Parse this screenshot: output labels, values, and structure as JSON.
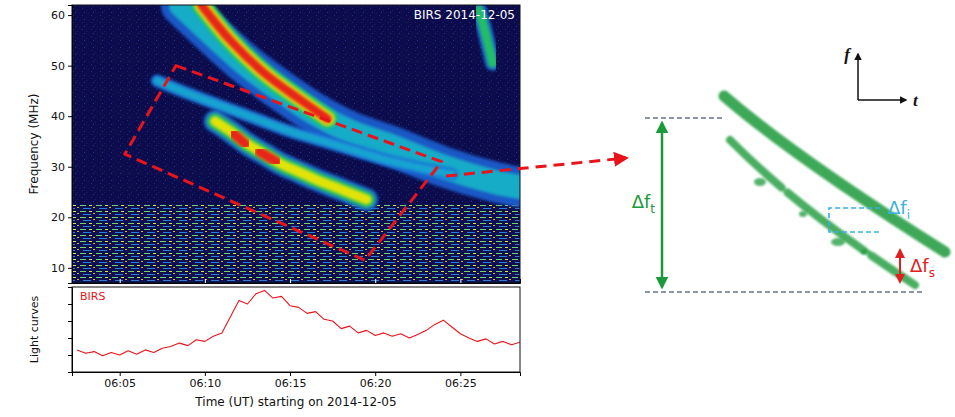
{
  "chart_data": [
    {
      "type": "spectrogram",
      "title": "BIRS 2014-12-05",
      "y_label": "Frequency (MHz)",
      "xlim": [
        2.2,
        28.5
      ],
      "xticks": [
        5,
        10,
        15,
        20,
        25
      ],
      "ylim": [
        7,
        62
      ],
      "yticks": [
        10,
        20,
        30,
        40,
        50,
        60
      ],
      "tick_labels": "y",
      "rfi_band": [
        7,
        22.5
      ],
      "highlight": {
        "t": [
          8.3,
          23.9,
          19.4,
          5.3
        ],
        "f": [
          50,
          31,
          11.5,
          32.5
        ]
      },
      "series": [
        {
          "x": [
            8.6,
            10.5,
            12.5,
            14.5,
            16.5,
            18.5,
            21,
            24,
            27,
            28.5
          ],
          "values": [
            62,
            56,
            50,
            45,
            40.5,
            37,
            34,
            30,
            27,
            26
          ],
          "bandwidth": 8,
          "colors": [
            "#1e5fd0",
            "#19b3c8"
          ]
        },
        {
          "x": [
            9.8,
            11.5,
            13.5,
            15.5,
            17.2
          ],
          "values": [
            62,
            55,
            48.5,
            43.5,
            39.5
          ],
          "bandwidth": 4,
          "colors": [
            "#1fc46a",
            "#f2e600",
            "#e8141c"
          ]
        },
        {
          "x": [
            7.2,
            9,
            11,
            13,
            15,
            17,
            19,
            21,
            23,
            24.5
          ],
          "values": [
            47,
            44.5,
            42,
            39.5,
            37,
            35,
            33,
            31,
            29.5,
            28.5
          ],
          "bandwidth": 2.5,
          "colors": [
            "#1e6fd8",
            "#18a9d0"
          ]
        },
        {
          "x": [
            10.6,
            11.5,
            12.5,
            13.5,
            14.5,
            15.5,
            16.5,
            18,
            19.5
          ],
          "values": [
            39,
            37,
            34.5,
            32.5,
            30.5,
            29,
            27.5,
            25.5,
            23.5
          ],
          "bandwidth": 4.5,
          "colors": [
            "#1e6fd8",
            "#22c55e",
            "#f2e600"
          ]
        },
        {
          "x": [
            11.7,
            12.4
          ],
          "values": [
            36.5,
            34.5
          ],
          "bandwidth": 2,
          "colors": [
            "#e8141c"
          ]
        },
        {
          "x": [
            13.2,
            14.2
          ],
          "values": [
            33,
            31
          ],
          "bandwidth": 2,
          "colors": [
            "#e8141c"
          ]
        },
        {
          "x": [
            26.1,
            26.5,
            26.9
          ],
          "values": [
            61,
            56,
            50.5
          ],
          "bandwidth": 3,
          "colors": [
            "#1e6fd8",
            "#22c55e"
          ]
        }
      ]
    },
    {
      "type": "line",
      "y_label": "Light curves",
      "x_label": "Time (UT) starting on 2014-12-05",
      "xlim": [
        2.2,
        28.5
      ],
      "xticks": [
        {
          "value": 5,
          "label": "06:05"
        },
        {
          "value": 10,
          "label": "06:10"
        },
        {
          "value": 15,
          "label": "06:15"
        },
        {
          "value": 20,
          "label": "06:20"
        },
        {
          "value": 25,
          "label": "06:25"
        }
      ],
      "ylim": [
        0,
        10
      ],
      "yticks": [
        2,
        4,
        6,
        8
      ],
      "tick_labels": "x",
      "legend": "upper left",
      "x": [
        2.5,
        3,
        3.5,
        4,
        4.5,
        5,
        5.5,
        6,
        6.5,
        7,
        7.5,
        8,
        8.5,
        9,
        9.5,
        10,
        10.5,
        11,
        11.5,
        12,
        12.5,
        13,
        13.5,
        14,
        14.5,
        15,
        15.5,
        16,
        16.5,
        17,
        17.5,
        18,
        18.5,
        19,
        19.5,
        20,
        20.5,
        21,
        21.5,
        22,
        22.5,
        23,
        23.5,
        24,
        24.5,
        25,
        25.5,
        26,
        26.5,
        27,
        27.5,
        28,
        28.5
      ],
      "series": [
        {
          "name": "BIRS",
          "color": "#e8141c",
          "values": [
            2.6,
            2.2,
            2.4,
            1.9,
            2.3,
            2.0,
            2.5,
            2.1,
            2.6,
            2.3,
            2.8,
            3.0,
            3.4,
            3.1,
            3.8,
            3.6,
            4.2,
            4.6,
            6.5,
            8.4,
            8.0,
            9.2,
            9.6,
            8.7,
            8.9,
            7.8,
            7.6,
            6.9,
            7.1,
            6.2,
            6.0,
            5.1,
            5.4,
            4.6,
            4.9,
            4.3,
            4.6,
            4.2,
            4.5,
            4.0,
            4.4,
            4.9,
            5.6,
            6.1,
            5.3,
            4.5,
            4.0,
            3.6,
            3.9,
            3.3,
            3.6,
            3.2,
            3.5
          ]
        }
      ]
    }
  ],
  "schematic": {
    "axes": {
      "f": "f",
      "t": "t"
    },
    "total": {
      "main": "Δf",
      "sub": "t",
      "color": "#1a9a3a"
    },
    "individual": {
      "main": "Δf",
      "sub": "i",
      "color": "#3ab0e0"
    },
    "split": {
      "main": "Δf",
      "sub": "s",
      "color": "#e02020"
    }
  }
}
